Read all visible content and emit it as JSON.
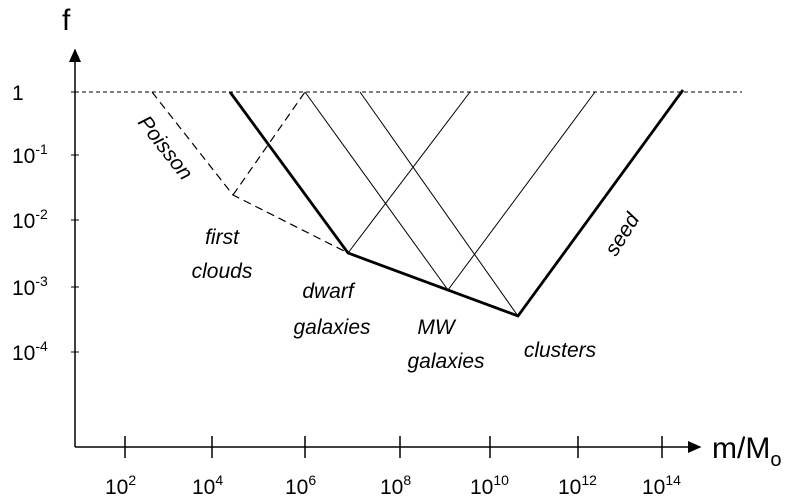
{
  "y_axis": {
    "label": "f",
    "ticks": [
      {
        "base": "1"
      },
      {
        "base": "10",
        "exponent": "-1"
      },
      {
        "base": "10",
        "exponent": "-2"
      },
      {
        "base": "10",
        "exponent": "-3"
      },
      {
        "base": "10",
        "exponent": "-4"
      }
    ]
  },
  "x_axis": {
    "label": "m/M",
    "label_subscript": "o",
    "ticks": [
      {
        "base": "10",
        "exponent": "2"
      },
      {
        "base": "10",
        "exponent": "4"
      },
      {
        "base": "10",
        "exponent": "6"
      },
      {
        "base": "10",
        "exponent": "8"
      },
      {
        "base": "10",
        "exponent": "10"
      },
      {
        "base": "10",
        "exponent": "12"
      },
      {
        "base": "10",
        "exponent": "14"
      }
    ]
  },
  "annotations": {
    "poisson": "Poisson",
    "first_clouds": [
      "first",
      "clouds"
    ],
    "dwarf_galaxies": [
      "dwarf",
      "galaxies"
    ],
    "mw_galaxies": [
      "MW",
      "galaxies"
    ],
    "clusters": "clusters",
    "seed": "seed"
  }
}
